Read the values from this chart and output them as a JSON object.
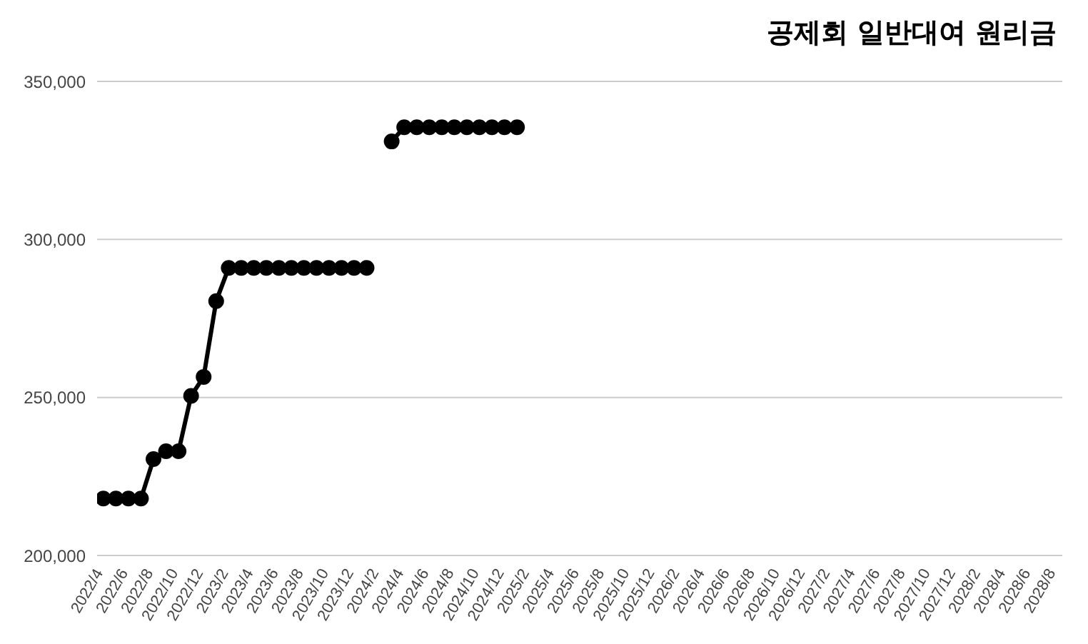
{
  "chart_data": {
    "type": "line",
    "title": "공제회 일반대여 원리금",
    "categories": [
      "2022/4",
      null,
      "2022/6",
      null,
      "2022/8",
      null,
      "2022/10",
      null,
      "2022/12",
      null,
      "2023/2",
      null,
      "2023/4",
      null,
      "2023/6",
      null,
      "2023/8",
      null,
      "2023/10",
      null,
      "2023/12",
      null,
      "2024/2",
      null,
      "2024/4",
      null,
      "2024/6",
      null,
      "2024/8",
      null,
      "2024/10",
      null,
      "2024/12",
      null,
      "2025/2",
      null,
      "2025/4",
      null,
      "2025/6",
      null,
      "2025/8",
      null,
      "2025/10",
      null,
      "2025/12",
      null,
      "2026/2",
      null,
      "2026/4",
      null,
      "2026/6",
      null,
      "2026/8",
      null,
      "2026/10",
      null,
      "2026/12",
      null,
      "2027/2",
      null,
      "2027/4",
      null,
      "2027/6",
      null,
      "2027/8",
      null,
      "2027/10",
      null,
      "2027/12",
      null,
      "2028/2",
      null,
      "2028/4",
      null,
      "2028/6",
      null,
      "2028/8"
    ],
    "series": [
      {
        "color": "#000000",
        "values": [
          218000,
          218000,
          218000,
          218000,
          230500,
          233000,
          233000,
          250500,
          256500,
          280500,
          291000,
          291000,
          291000,
          291000,
          291000,
          291000,
          291000,
          291000,
          291000,
          291000,
          291000,
          291000,
          null,
          331000,
          335500,
          335500,
          335500,
          335500,
          335500,
          335500,
          335500,
          335500,
          335500,
          335500,
          null,
          null,
          null,
          null,
          null,
          null,
          null,
          null,
          null,
          null,
          null,
          null,
          null,
          null,
          null,
          null,
          null,
          null,
          null,
          null,
          null,
          null,
          null,
          null,
          null,
          null,
          null,
          null,
          null,
          null,
          null,
          null,
          null,
          null,
          null,
          null,
          null,
          null,
          null,
          null,
          null,
          null,
          null
        ]
      }
    ],
    "ylim": [
      200000,
      350000
    ],
    "yticks": [
      {
        "value": 200000,
        "label": "200,000"
      },
      {
        "value": 250000,
        "label": "250,000"
      },
      {
        "value": 300000,
        "label": "300,000"
      },
      {
        "value": 350000,
        "label": "350,000"
      }
    ],
    "grid": "y",
    "marker": "circle",
    "line_style": "solid"
  }
}
